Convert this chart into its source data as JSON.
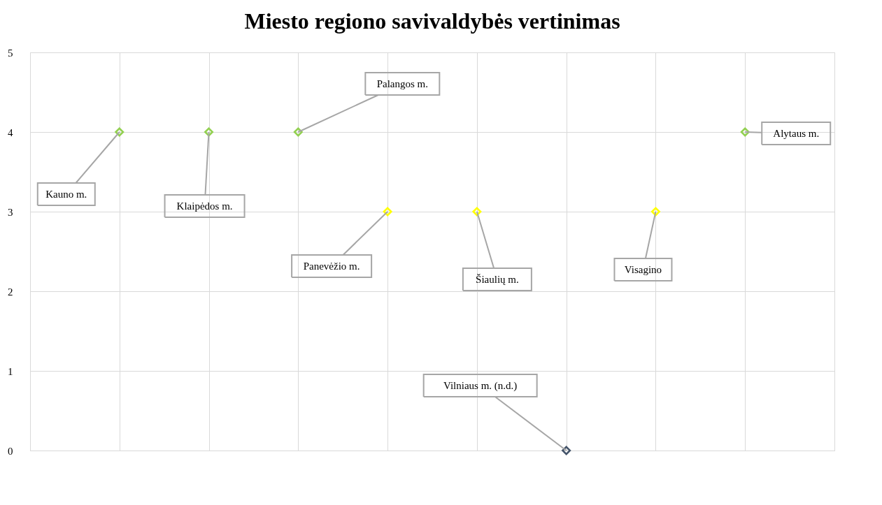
{
  "chart_data": {
    "type": "scatter",
    "title": "Miesto regiono savivaldybės vertinimas",
    "categories": [
      null,
      null,
      null,
      null,
      null,
      null,
      null,
      null
    ],
    "values": [
      4,
      4,
      4,
      3,
      3,
      0,
      3,
      4
    ],
    "colors": [
      "#92d050",
      "#92d050",
      "#92d050",
      "#ffff00",
      "#ffff00",
      "#44546a",
      "#ffff00",
      "#92d050"
    ],
    "ylim": [
      0,
      5
    ],
    "yticks": [
      0,
      1,
      2,
      3,
      4,
      5
    ],
    "tick_labels": "y",
    "grid": true,
    "marker": "diamond",
    "annotations": [
      "Kauno m.",
      "Klaipėdos m.",
      "Palangos m.",
      "Panevėžio m.",
      "Šiaulių m.",
      "Vilniaus m. (n.d.)",
      "Visagino",
      "Alytaus m."
    ]
  }
}
